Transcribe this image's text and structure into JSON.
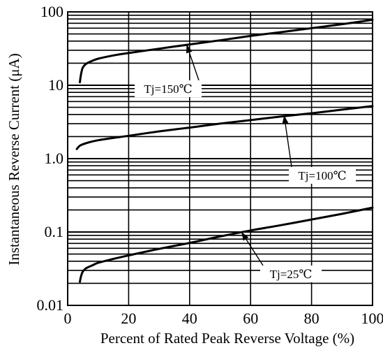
{
  "chart_data": {
    "type": "line",
    "title": "",
    "xlabel": "Percent of Rated Peak Reverse Voltage (%)",
    "ylabel": "Instantaneous Reverse Current (μA)",
    "xlim": [
      0,
      100
    ],
    "ylim": [
      0.01,
      100
    ],
    "yscale": "log",
    "grid": true,
    "x_ticks": [
      0,
      20,
      40,
      60,
      80,
      100
    ],
    "x_tick_labels": [
      "0",
      "20",
      "40",
      "60",
      "80",
      "100"
    ],
    "y_ticks": [
      0.01,
      0.1,
      1,
      10,
      100
    ],
    "y_tick_labels": [
      "0.01",
      "0.1",
      "1.0",
      "10",
      "100"
    ],
    "series": [
      {
        "name": "Tj=150℃",
        "x": [
          4,
          4.5,
          5,
          6,
          8,
          10,
          15,
          20,
          30,
          40,
          50,
          60,
          70,
          80,
          90,
          100
        ],
        "y": [
          11,
          15,
          17.5,
          19.5,
          21.5,
          23,
          25.5,
          27.5,
          31.5,
          36,
          41,
          47,
          53,
          60,
          68,
          78
        ]
      },
      {
        "name": "Tj=100℃",
        "x": [
          3,
          4,
          6,
          10,
          20,
          30,
          40,
          50,
          60,
          70,
          80,
          90,
          100
        ],
        "y": [
          1.35,
          1.5,
          1.62,
          1.78,
          2.05,
          2.35,
          2.65,
          3.0,
          3.35,
          3.75,
          4.15,
          4.65,
          5.2
        ]
      },
      {
        "name": "Tj=25℃",
        "x": [
          4,
          4.5,
          5,
          6,
          8,
          10,
          15,
          20,
          30,
          40,
          50,
          60,
          70,
          80,
          90,
          100
        ],
        "y": [
          0.021,
          0.026,
          0.029,
          0.032,
          0.035,
          0.038,
          0.043,
          0.048,
          0.059,
          0.071,
          0.087,
          0.105,
          0.124,
          0.148,
          0.177,
          0.215
        ]
      }
    ],
    "annotations": [
      {
        "text": "Tj=150℃",
        "arrow_to": [
          39,
          36
        ]
      },
      {
        "text": "Tj=100℃",
        "arrow_to": [
          71,
          3.9
        ]
      },
      {
        "text": "Tj=25℃",
        "arrow_to": [
          57,
          0.1
        ]
      }
    ],
    "colors": {
      "line": "#000000",
      "grid": "#000000",
      "background": "#ffffff"
    }
  }
}
